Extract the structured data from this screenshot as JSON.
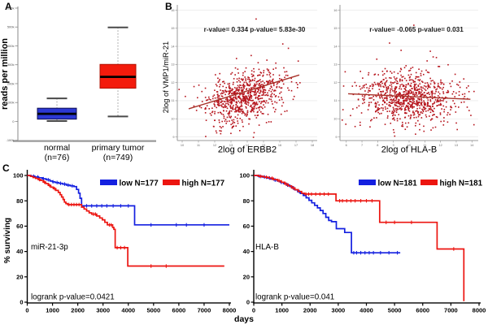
{
  "figure": {
    "panel_letters": {
      "a": "A",
      "b": "B",
      "c": "C"
    },
    "background_color": "#ffffff",
    "accent_colors": {
      "low_group_blue": "#1420e0",
      "high_group_red": "#ec1510",
      "scatter_point_red": "#b5121a"
    }
  },
  "chart_data": [
    {
      "id": "boxplot",
      "type": "box",
      "ylabel": "reads per million",
      "ylim": [
        -100000,
        600000
      ],
      "yticks": [
        600000,
        500000,
        400000,
        300000,
        200000,
        100000,
        0,
        -100000
      ],
      "ytick_labels": [
        "600k",
        "500k",
        "400k",
        "300k",
        "200k",
        "100k",
        "0",
        "-100k"
      ],
      "groups": [
        {
          "label": "normal",
          "sublabel": "(n=76)",
          "color": "#2c38d4",
          "edge": "#0d0d50",
          "whisker_low": 2000,
          "q1": 12000,
          "median": 40000,
          "q3": 70000,
          "whisker_high": 122000
        },
        {
          "label": "primary tumor",
          "sublabel": "(n=749)",
          "color": "#f31b0c",
          "edge": "#b01000",
          "whisker_low": 26000,
          "q1": 176000,
          "median": 236000,
          "q3": 302000,
          "whisker_high": 498000
        }
      ]
    },
    {
      "id": "scatter_erbb2",
      "type": "scatter",
      "annotation": "r-value= 0.334 p-value= 5.83e-30",
      "xlabel": "2log of ERBB2",
      "ylabel": "2log of VMP1/miR-21",
      "xlim": [
        9.7,
        18.3
      ],
      "ylim": [
        8.8,
        16.2
      ],
      "xticks": [
        10,
        11,
        12,
        13,
        14,
        15,
        16,
        17,
        18
      ],
      "yticks": [
        9,
        10,
        11,
        12,
        13,
        14,
        15,
        16
      ],
      "point_color": "#b5121a",
      "trend_color": "#a8322a",
      "n_points": 780,
      "seed": 11,
      "cluster": {
        "cx": 13.8,
        "cy": 11.25,
        "sdx": 1.15,
        "sdy": 0.73,
        "r": 0.334
      },
      "trend": {
        "x1": 10.4,
        "y1": 10.55,
        "x2": 17.2,
        "y2": 12.42
      },
      "grid": true
    },
    {
      "id": "scatter_hlab",
      "type": "scatter",
      "annotation": "r-value= -0.065 p-value= 0.031",
      "xlabel": "2log of HLA-B",
      "ylabel": "",
      "xlim": [
        5.6,
        14.4
      ],
      "ylim": [
        8.8,
        16.2
      ],
      "xticks": [
        6,
        7,
        8,
        9,
        10,
        11,
        12,
        13,
        14
      ],
      "yticks": [
        9,
        10,
        11,
        12,
        13,
        14,
        15,
        16
      ],
      "point_color": "#b5121a",
      "trend_color": "#a8322a",
      "n_points": 870,
      "seed": 23,
      "cluster": {
        "cx": 9.84,
        "cy": 11.15,
        "sdx": 1.5,
        "sdy": 0.7,
        "r": -0.065
      },
      "trend": {
        "x1": 6.12,
        "y1": 11.38,
        "x2": 13.9,
        "y2": 11.08
      },
      "grid": true
    },
    {
      "id": "km_mir21",
      "type": "km",
      "gene_label": "miR-21-3p",
      "pvalue_label": "logrank p-value=0.0421",
      "ylabel": "% surviving",
      "xlabel": "days",
      "xlim": [
        0,
        8000
      ],
      "ylim": [
        0,
        100
      ],
      "xticks": [
        0,
        1000,
        2000,
        3000,
        4000,
        5000,
        6000,
        7000,
        8000
      ],
      "yticks": [
        0,
        20,
        40,
        60,
        80,
        100
      ],
      "series": [
        {
          "name": "low",
          "legend_label": "low N=177",
          "color": "#1420e0",
          "steps": [
            [
              0,
              100
            ],
            [
              150,
              99.4
            ],
            [
              300,
              98.8
            ],
            [
              450,
              98.2
            ],
            [
              600,
              97.4
            ],
            [
              750,
              96.6
            ],
            [
              900,
              95.6
            ],
            [
              1000,
              95
            ],
            [
              1100,
              94.4
            ],
            [
              1250,
              93.8
            ],
            [
              1400,
              93.2
            ],
            [
              1550,
              92.4
            ],
            [
              1700,
              91.8
            ],
            [
              1850,
              91.2
            ],
            [
              1950,
              89
            ],
            [
              2030,
              86
            ],
            [
              2090,
              82
            ],
            [
              2150,
              76
            ],
            [
              4250,
              61
            ],
            [
              8000,
              61
            ]
          ],
          "censor": [
            250,
            420,
            640,
            830,
            1020,
            1180,
            1320,
            1480,
            1620,
            1780,
            2350,
            2550,
            2750,
            2950,
            3150,
            3400,
            3700,
            4000,
            4900,
            5900,
            6300,
            7000
          ]
        },
        {
          "name": "high",
          "legend_label": "high N=177",
          "color": "#ec1510",
          "steps": [
            [
              0,
              100
            ],
            [
              130,
              99.2
            ],
            [
              230,
              98.4
            ],
            [
              330,
              97.6
            ],
            [
              430,
              96.8
            ],
            [
              530,
              96
            ],
            [
              630,
              94.8
            ],
            [
              730,
              93.6
            ],
            [
              830,
              92.2
            ],
            [
              930,
              90.8
            ],
            [
              1030,
              89.6
            ],
            [
              1130,
              88.2
            ],
            [
              1230,
              86.6
            ],
            [
              1300,
              84.8
            ],
            [
              1360,
              83
            ],
            [
              1420,
              81
            ],
            [
              1470,
              79
            ],
            [
              1530,
              77.8
            ],
            [
              1600,
              77
            ],
            [
              2150,
              75
            ],
            [
              2250,
              73.5
            ],
            [
              2350,
              72
            ],
            [
              2450,
              70.5
            ],
            [
              2550,
              69.5
            ],
            [
              2750,
              68
            ],
            [
              2870,
              66.5
            ],
            [
              2970,
              65
            ],
            [
              3070,
              63
            ],
            [
              3170,
              61
            ],
            [
              3380,
              59
            ],
            [
              3430,
              57.5
            ],
            [
              3480,
              43
            ],
            [
              3980,
              28.5
            ],
            [
              7800,
              28.5
            ]
          ],
          "censor": [
            480,
            680,
            880,
            1080,
            1650,
            1750,
            1850,
            1950,
            2050,
            2620,
            2700,
            3250,
            3320,
            3560,
            3700,
            3850,
            4900,
            5500
          ]
        }
      ]
    },
    {
      "id": "km_hlab",
      "type": "km",
      "gene_label": "HLA-B",
      "pvalue_label": "logrank p-value=0.041",
      "ylabel": "",
      "xlabel": "days",
      "xlim": [
        0,
        8000
      ],
      "ylim": [
        0,
        100
      ],
      "xticks": [
        0,
        1000,
        2000,
        3000,
        4000,
        5000,
        6000,
        7000,
        8000
      ],
      "yticks": [
        0,
        20,
        40,
        60,
        80,
        100
      ],
      "series": [
        {
          "name": "low",
          "legend_label": "low N=181",
          "color": "#1420e0",
          "steps": [
            [
              0,
              100
            ],
            [
              150,
              99.4
            ],
            [
              300,
              98.8
            ],
            [
              450,
              98
            ],
            [
              600,
              97.2
            ],
            [
              720,
              96.4
            ],
            [
              840,
              95.6
            ],
            [
              950,
              94.6
            ],
            [
              1060,
              93.6
            ],
            [
              1170,
              92.4
            ],
            [
              1280,
              91.2
            ],
            [
              1370,
              90
            ],
            [
              1460,
              88.6
            ],
            [
              1560,
              87.2
            ],
            [
              1660,
              85.8
            ],
            [
              1760,
              84.2
            ],
            [
              1860,
              82.4
            ],
            [
              1960,
              80.4
            ],
            [
              2060,
              78.4
            ],
            [
              2160,
              76.4
            ],
            [
              2260,
              74.4
            ],
            [
              2360,
              72.4
            ],
            [
              2460,
              70
            ],
            [
              2560,
              67
            ],
            [
              2660,
              64.5
            ],
            [
              2760,
              63.5
            ],
            [
              2930,
              58
            ],
            [
              3230,
              55
            ],
            [
              3470,
              39
            ],
            [
              5200,
              39
            ]
          ],
          "censor": [
            200,
            380,
            560,
            760,
            980,
            1200,
            1420,
            1620,
            3550,
            3650,
            3800,
            3950,
            4100,
            4250,
            4500,
            4800,
            5100
          ]
        },
        {
          "name": "high",
          "legend_label": "high N=181",
          "color": "#ec1510",
          "steps": [
            [
              0,
              100
            ],
            [
              180,
              99.3
            ],
            [
              360,
              98.6
            ],
            [
              540,
              97.8
            ],
            [
              700,
              96.8
            ],
            [
              850,
              95.8
            ],
            [
              980,
              94.6
            ],
            [
              1100,
              93.2
            ],
            [
              1220,
              91.8
            ],
            [
              1340,
              90.2
            ],
            [
              1460,
              88.8
            ],
            [
              1580,
              87.4
            ],
            [
              1700,
              86
            ],
            [
              1800,
              85.3
            ],
            [
              2920,
              80
            ],
            [
              4470,
              63
            ],
            [
              6510,
              42
            ],
            [
              7460,
              0.8
            ]
          ],
          "censor": [
            250,
            450,
            650,
            900,
            1150,
            1400,
            1850,
            1950,
            2050,
            2200,
            2350,
            2500,
            2650,
            3050,
            3150,
            3300,
            3450,
            3600,
            3800,
            4000,
            4200,
            4700,
            5000,
            5600,
            7100
          ]
        }
      ]
    }
  ]
}
